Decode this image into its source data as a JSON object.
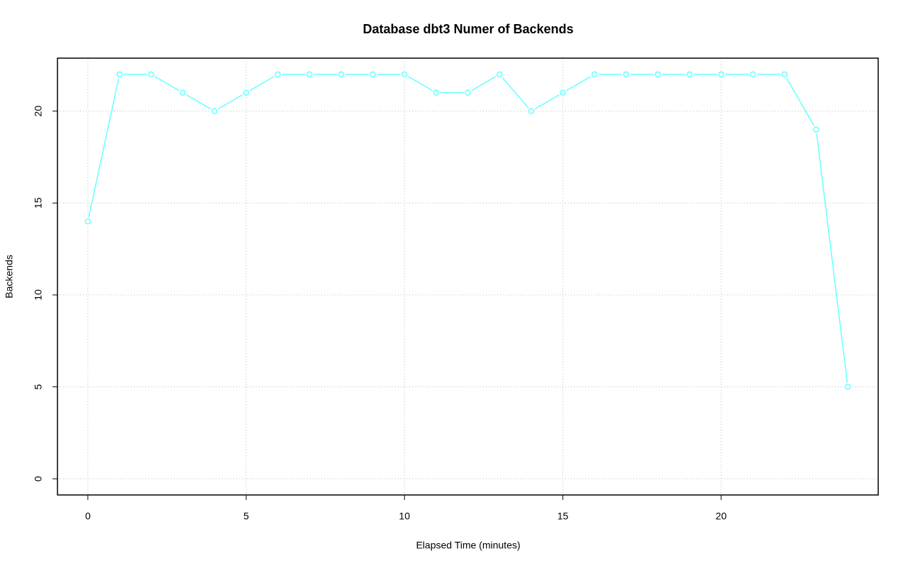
{
  "chart_data": {
    "type": "line",
    "title": "Database dbt3 Numer of Backends",
    "x_label": "Elapsed Time (minutes)",
    "y_label": "Backends",
    "x": [
      0,
      1,
      2,
      3,
      4,
      5,
      6,
      7,
      8,
      9,
      10,
      11,
      12,
      13,
      14,
      15,
      16,
      17,
      18,
      19,
      20,
      21,
      22,
      23,
      24
    ],
    "series": [
      {
        "color": "#66ffff",
        "values": [
          14,
          22,
          22,
          21,
          20,
          21,
          22,
          22,
          22,
          22,
          22,
          21,
          21,
          22,
          20,
          21,
          22,
          22,
          22,
          22,
          22,
          22,
          22,
          19,
          5
        ]
      }
    ],
    "xlim": [
      -0.96,
      24.96
    ],
    "xticks": [
      0,
      5,
      10,
      15,
      20
    ],
    "ylim": [
      -0.88,
      22.88
    ],
    "yticks": [
      0,
      5,
      10,
      15,
      20
    ],
    "grid": true
  }
}
